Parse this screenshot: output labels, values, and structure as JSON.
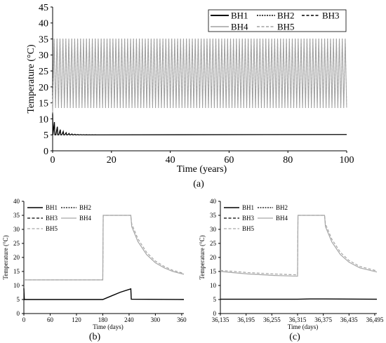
{
  "figure": {
    "captions": [
      "(a)",
      "(b)",
      "(c)"
    ]
  },
  "chart_data": [
    {
      "id": "a",
      "type": "line",
      "xlabel": "Time (years)",
      "ylabel": "Temperature (°C)",
      "xlim": [
        0,
        100
      ],
      "ylim": [
        0,
        45
      ],
      "xticks": [
        0,
        20,
        40,
        60,
        80,
        100
      ],
      "xtick_labels": [
        "0",
        "20",
        "40",
        "60",
        "80",
        "100"
      ],
      "yticks": [
        0,
        5,
        10,
        15,
        20,
        25,
        30,
        35,
        40,
        45
      ],
      "ytick_labels": [
        "0",
        "5",
        "10",
        "15",
        "20",
        "25",
        "30",
        "35",
        "40",
        "45"
      ],
      "grid": false,
      "legend_position": "top-right",
      "legend": [
        "BH1",
        "BH2",
        "BH3",
        "BH4",
        "BH5"
      ],
      "series": [
        {
          "name": "BH1",
          "color": "#000000",
          "style": "solid",
          "description_values": {
            "cycle_min": 5.0,
            "cycle_max_first_year": 9.0,
            "steady_value": 5.1
          }
        },
        {
          "name": "BH2",
          "color": "#000000",
          "style": "dotted",
          "description_values": {
            "steady_value": 5.1
          }
        },
        {
          "name": "BH3",
          "color": "#000000",
          "style": "dashed",
          "description_values": {
            "steady_value": 5.1
          }
        },
        {
          "name": "BH4",
          "color": "#999999",
          "style": "solid",
          "description_values": {
            "cycle_min": 13.5,
            "cycle_max": 35.0,
            "first_min": 12.0,
            "cycles_per_year": 1
          }
        },
        {
          "name": "BH5",
          "color": "#999999",
          "style": "dashed",
          "description_values": {
            "cycle_min": 14.5,
            "cycle_max": 35.0,
            "cycles_per_year": 1
          }
        }
      ]
    },
    {
      "id": "b",
      "type": "line",
      "xlabel": "Time (days)",
      "ylabel": "Temperature (°C)",
      "xlim": [
        0,
        365
      ],
      "ylim": [
        0,
        40
      ],
      "xticks": [
        0,
        60,
        120,
        180,
        240,
        300,
        360
      ],
      "xtick_labels": [
        "0",
        "60",
        "120",
        "180",
        "240",
        "300",
        "360"
      ],
      "yticks": [
        0,
        5,
        10,
        15,
        20,
        25,
        30,
        35,
        40
      ],
      "ytick_labels": [
        "0",
        "5",
        "10",
        "15",
        "20",
        "25",
        "30",
        "35",
        "40"
      ],
      "grid": false,
      "legend_position": "top-left",
      "legend": [
        "BH1",
        "BH2",
        "BH3",
        "BH4",
        "BH5"
      ],
      "series": [
        {
          "name": "BH1",
          "color": "#000000",
          "style": "solid",
          "x": [
            0,
            1,
            2,
            180,
            200,
            220,
            244,
            245,
            365
          ],
          "y": [
            9.0,
            5.0,
            5.0,
            5.0,
            6.3,
            7.6,
            8.8,
            5.1,
            5.0
          ]
        },
        {
          "name": "BH4",
          "color": "#999999",
          "style": "solid",
          "x": [
            0,
            180,
            181,
            244,
            246,
            260,
            280,
            300,
            320,
            340,
            365
          ],
          "y": [
            12.0,
            12.0,
            35.0,
            35.0,
            31.0,
            25.7,
            21.0,
            18.1,
            16.3,
            15.0,
            14.0
          ]
        },
        {
          "name": "BH5",
          "color": "#999999",
          "style": "dashed",
          "x": [
            0,
            180,
            181,
            244,
            246,
            260,
            280,
            300,
            320,
            340,
            365
          ],
          "y": [
            12.0,
            12.0,
            35.0,
            35.0,
            32.0,
            26.7,
            21.8,
            18.7,
            16.8,
            15.4,
            14.3
          ]
        }
      ]
    },
    {
      "id": "c",
      "type": "line",
      "xlabel": "Time (days)",
      "ylabel": "Temperature (°C)",
      "xlim": [
        36135,
        36500
      ],
      "ylim": [
        0,
        40
      ],
      "xticks": [
        36135,
        36195,
        36255,
        36315,
        36375,
        36435,
        36495
      ],
      "xtick_labels": [
        "36,135",
        "36,195",
        "36,255",
        "36,315",
        "36,375",
        "36,435",
        "36,495"
      ],
      "yticks": [
        0,
        5,
        10,
        15,
        20,
        25,
        30,
        35,
        40
      ],
      "ytick_labels": [
        "0",
        "5",
        "10",
        "15",
        "20",
        "25",
        "30",
        "35",
        "40"
      ],
      "grid": false,
      "legend_position": "top-left",
      "legend": [
        "BH1",
        "BH2",
        "BH3",
        "BH4",
        "BH5"
      ],
      "series": [
        {
          "name": "BH1",
          "color": "#000000",
          "style": "solid",
          "x": [
            36135,
            36315,
            36345,
            36378,
            36500
          ],
          "y": [
            5.1,
            5.1,
            5.2,
            5.2,
            5.1
          ]
        },
        {
          "name": "BH4",
          "color": "#999999",
          "style": "solid",
          "x": [
            36135,
            36200,
            36260,
            36315,
            36316,
            36378,
            36380,
            36395,
            36415,
            36435,
            36460,
            36500
          ],
          "y": [
            15.0,
            14.1,
            13.6,
            13.3,
            35.0,
            35.0,
            31.0,
            25.5,
            21.0,
            18.3,
            16.3,
            14.8
          ]
        },
        {
          "name": "BH5",
          "color": "#999999",
          "style": "dashed",
          "x": [
            36135,
            36200,
            36260,
            36315,
            36316,
            36378,
            36380,
            36395,
            36415,
            36435,
            36460,
            36500
          ],
          "y": [
            15.4,
            14.6,
            14.1,
            13.8,
            35.0,
            35.0,
            32.0,
            26.5,
            21.8,
            18.9,
            16.8,
            15.2
          ]
        }
      ]
    }
  ]
}
